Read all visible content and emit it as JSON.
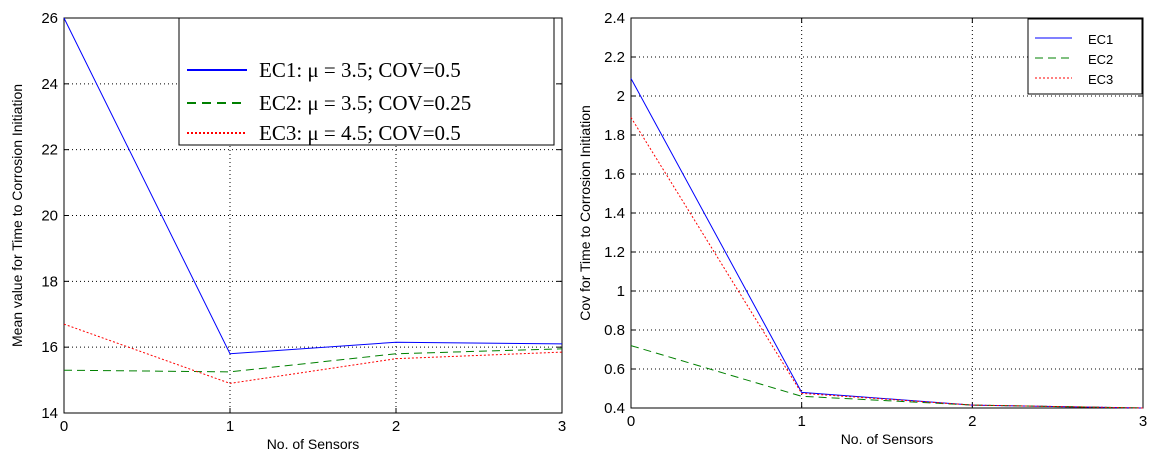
{
  "chart_data": [
    {
      "type": "line",
      "xlabel": "No. of Sensors",
      "ylabel": "Mean value for Time to Corrosion Initiation",
      "xlim": [
        0,
        3
      ],
      "ylim": [
        14,
        26
      ],
      "xticks": [
        0,
        1,
        2,
        3
      ],
      "yticks": [
        14,
        16,
        18,
        20,
        22,
        24,
        26
      ],
      "grid": true,
      "legend_position": "top-right",
      "series": [
        {
          "name": "EC1: μ = 3.5; COV=0.5",
          "color": "#0000ff",
          "dash": "solid",
          "x": [
            0,
            1,
            2,
            3
          ],
          "y": [
            26.0,
            15.8,
            16.15,
            16.1
          ]
        },
        {
          "name": "EC2: μ = 3.5; COV=0.25",
          "color": "#008000",
          "dash": "dashed",
          "x": [
            0,
            1,
            2,
            3
          ],
          "y": [
            15.3,
            15.25,
            15.8,
            15.95
          ]
        },
        {
          "name": "EC3: μ = 4.5; COV=0.5",
          "color": "#ff0000",
          "dash": "dotted",
          "x": [
            0,
            1,
            2,
            3
          ],
          "y": [
            16.7,
            14.9,
            15.65,
            15.85
          ]
        }
      ]
    },
    {
      "type": "line",
      "xlabel": "No. of Sensors",
      "ylabel": "Cov for Time to Corrosion Initiation",
      "xlim": [
        0,
        3
      ],
      "ylim": [
        0.4,
        2.4
      ],
      "xticks": [
        0,
        1,
        2,
        3
      ],
      "yticks": [
        0.4,
        0.6,
        0.8,
        1,
        1.2,
        1.4,
        1.6,
        1.8,
        2,
        2.2,
        2.4
      ],
      "grid": true,
      "legend_position": "top-right",
      "series": [
        {
          "name": "EC1",
          "color": "#0000ff",
          "dash": "solid",
          "x": [
            0,
            1,
            2,
            3
          ],
          "y": [
            2.09,
            0.48,
            0.415,
            0.4
          ]
        },
        {
          "name": "EC2",
          "color": "#008000",
          "dash": "dashed",
          "x": [
            0,
            1,
            2,
            3
          ],
          "y": [
            0.72,
            0.46,
            0.415,
            0.4
          ]
        },
        {
          "name": "EC3",
          "color": "#ff0000",
          "dash": "dotted",
          "x": [
            0,
            1,
            2,
            3
          ],
          "y": [
            1.89,
            0.475,
            0.415,
            0.4
          ]
        }
      ]
    }
  ]
}
